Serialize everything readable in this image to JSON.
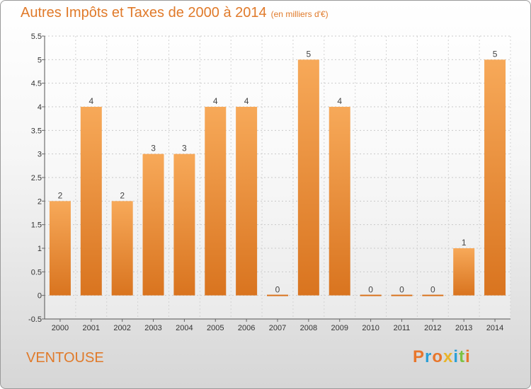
{
  "title": "Autres Impôts et Taxes de 2000 à 2014",
  "title_unit": "(en milliers d'€)",
  "commune": "VENTOUSE",
  "logo_text": "Proxiti",
  "colors": {
    "title": "#e07a2a",
    "bar_top": "#f7a959",
    "bar_bottom": "#d9741f",
    "logo": [
      "#e8762b",
      "#2a9fd6",
      "#e8762b",
      "#e8b52b",
      "#2a9fd6",
      "#7cc242",
      "#e8762b"
    ]
  },
  "chart_data": {
    "type": "bar",
    "title": "Autres Impôts et Taxes de 2000 à 2014",
    "xlabel": "",
    "ylabel": "",
    "categories": [
      "2000",
      "2001",
      "2002",
      "2003",
      "2004",
      "2005",
      "2006",
      "2007",
      "2008",
      "2009",
      "2010",
      "2011",
      "2012",
      "2013",
      "2014"
    ],
    "values": [
      2,
      4,
      2,
      3,
      3,
      4,
      4,
      0,
      5,
      4,
      0,
      0,
      0,
      1,
      5
    ],
    "data_labels": [
      "2",
      "4",
      "2",
      "3",
      "3",
      "4",
      "4",
      "0",
      "5",
      "4",
      "0",
      "0",
      "0",
      "1",
      "5"
    ],
    "ylim": [
      -0.5,
      5.5
    ],
    "yticks": [
      -0.5,
      0,
      0.5,
      1,
      1.5,
      2,
      2.5,
      3,
      3.5,
      4,
      4.5,
      5,
      5.5
    ],
    "ytick_labels": [
      "-0.5",
      "0",
      "0.5",
      "1",
      "1.5",
      "2",
      "2.5",
      "3",
      "3.5",
      "4",
      "4.5",
      "5",
      "5.5"
    ],
    "grid": true,
    "legend": "none"
  }
}
